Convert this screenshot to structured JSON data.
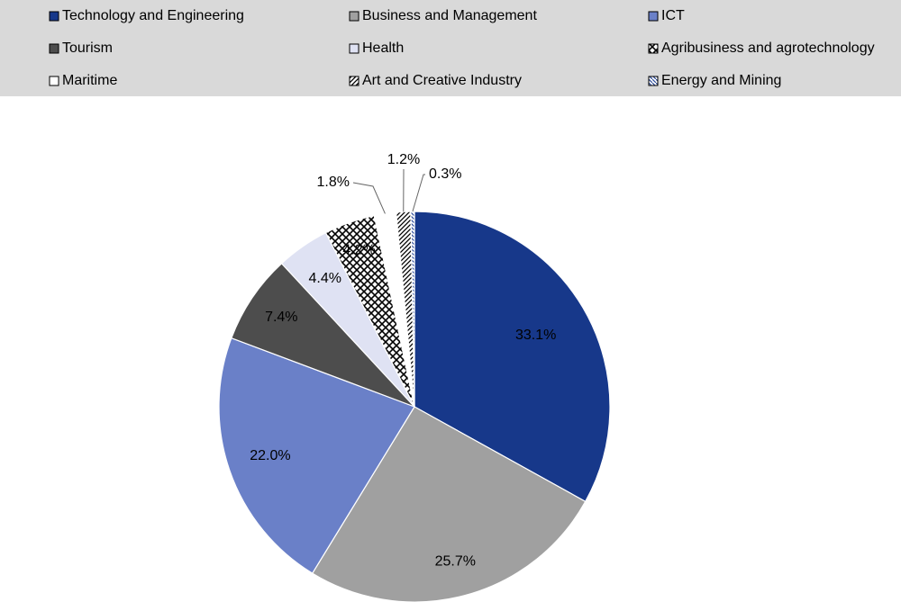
{
  "chart_data": {
    "type": "pie",
    "categories": [
      "Technology and Engineering",
      "Business and Management",
      "ICT",
      "Tourism",
      "Health",
      "Agribusiness and agrotechnology",
      "Maritime",
      "Art and Creative Industry",
      "Energy and Mining"
    ],
    "values": [
      33.1,
      25.7,
      22.0,
      7.4,
      4.4,
      4.2,
      1.8,
      1.2,
      0.3
    ],
    "value_labels": [
      "33.1%",
      "25.7%",
      "22.0%",
      "7.4%",
      "4.4%",
      "4.2%",
      "1.8%",
      "1.2%",
      "0.3%"
    ],
    "colors": [
      "#17388a",
      "#a0a0a0",
      "#6a80c8",
      "#4d4d4d",
      "#dfe2f3",
      "#000000",
      "#ffffff",
      "#000000",
      "#2b4a9a"
    ],
    "patterns": [
      null,
      null,
      null,
      null,
      null,
      "crosshatch",
      null,
      "diagonal",
      "diagonal-fine"
    ],
    "legend": "top"
  }
}
